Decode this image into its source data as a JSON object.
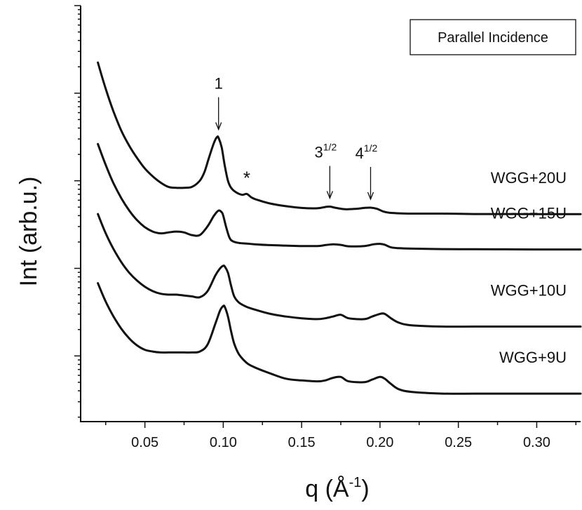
{
  "chart_data": {
    "type": "line",
    "title": "",
    "xlabel": "q (Å",
    "xlabel_superscript": "-1",
    "xlabel_close": ")",
    "ylabel": "Int (arb.u.)",
    "xlim": [
      0.009,
      0.328
    ],
    "y_scale": "log (arbitrary units, offset curves)",
    "grid": false,
    "x_ticks": [
      0.05,
      0.1,
      0.15,
      0.2,
      0.25,
      0.3
    ],
    "x_tick_labels": [
      "0.05",
      "0.10",
      "0.15",
      "0.20",
      "0.25",
      "0.30"
    ],
    "legend_box": {
      "text": "Parallel Incidence",
      "placement": "top-right"
    },
    "annotations": [
      {
        "label": "1",
        "superscript": "",
        "q": 0.097,
        "target_series": "WGG+20U"
      },
      {
        "label": "*",
        "superscript": "",
        "q": 0.115,
        "target_series": "WGG+20U"
      },
      {
        "label": "3",
        "superscript": "1/2",
        "q": 0.168,
        "target_series": "WGG+20U"
      },
      {
        "label": "4",
        "superscript": "1/2",
        "q": 0.194,
        "target_series": "WGG+20U"
      }
    ],
    "series": [
      {
        "name": "WGG+20U",
        "x": [
          0.02,
          0.025,
          0.03,
          0.035,
          0.04,
          0.045,
          0.05,
          0.055,
          0.06,
          0.065,
          0.07,
          0.075,
          0.08,
          0.085,
          0.088,
          0.091,
          0.094,
          0.096,
          0.097,
          0.099,
          0.101,
          0.103,
          0.105,
          0.108,
          0.112,
          0.115,
          0.118,
          0.122,
          0.13,
          0.14,
          0.15,
          0.16,
          0.165,
          0.168,
          0.172,
          0.178,
          0.185,
          0.19,
          0.194,
          0.198,
          0.202,
          0.206,
          0.212,
          0.22,
          0.24,
          0.26,
          0.28,
          0.3,
          0.328
        ],
        "y": [
          2.35,
          2.05,
          1.79,
          1.57,
          1.4,
          1.26,
          1.14,
          1.05,
          0.98,
          0.93,
          0.92,
          0.92,
          0.93,
          1.0,
          1.1,
          1.27,
          1.43,
          1.5,
          1.49,
          1.38,
          1.17,
          1.0,
          0.92,
          0.87,
          0.84,
          0.85,
          0.81,
          0.78,
          0.74,
          0.71,
          0.69,
          0.686,
          0.7,
          0.705,
          0.69,
          0.675,
          0.68,
          0.69,
          0.693,
          0.68,
          0.65,
          0.635,
          0.628,
          0.625,
          0.625,
          0.62,
          0.62,
          0.619,
          0.619
        ]
      },
      {
        "name": "WGG+15U",
        "x": [
          0.02,
          0.025,
          0.03,
          0.035,
          0.04,
          0.045,
          0.05,
          0.055,
          0.06,
          0.065,
          0.07,
          0.075,
          0.08,
          0.085,
          0.09,
          0.094,
          0.097,
          0.099,
          0.1,
          0.102,
          0.104,
          0.106,
          0.11,
          0.115,
          0.12,
          0.13,
          0.14,
          0.15,
          0.16,
          0.165,
          0.17,
          0.175,
          0.18,
          0.19,
          0.196,
          0.2,
          0.203,
          0.207,
          0.212,
          0.22,
          0.24,
          0.26,
          0.28,
          0.3,
          0.328
        ],
        "y": [
          1.42,
          1.18,
          0.97,
          0.8,
          0.66,
          0.55,
          0.47,
          0.42,
          0.4,
          0.41,
          0.42,
          0.41,
          0.38,
          0.38,
          0.48,
          0.6,
          0.66,
          0.64,
          0.6,
          0.46,
          0.35,
          0.31,
          0.29,
          0.283,
          0.275,
          0.265,
          0.26,
          0.255,
          0.255,
          0.265,
          0.275,
          0.268,
          0.252,
          0.255,
          0.275,
          0.28,
          0.27,
          0.24,
          0.23,
          0.225,
          0.22,
          0.218,
          0.217,
          0.216,
          0.216
        ]
      },
      {
        "name": "WGG+10U",
        "x": [
          0.02,
          0.025,
          0.03,
          0.035,
          0.04,
          0.045,
          0.05,
          0.055,
          0.06,
          0.065,
          0.07,
          0.075,
          0.08,
          0.085,
          0.09,
          0.095,
          0.098,
          0.1,
          0.101,
          0.103,
          0.105,
          0.107,
          0.11,
          0.115,
          0.12,
          0.13,
          0.14,
          0.15,
          0.16,
          0.165,
          0.17,
          0.175,
          0.18,
          0.19,
          0.195,
          0.2,
          0.203,
          0.207,
          0.212,
          0.22,
          0.24,
          0.26,
          0.28,
          0.3,
          0.328
        ],
        "y": [
          0.62,
          0.4,
          0.22,
          0.07,
          -0.05,
          -0.14,
          -0.21,
          -0.26,
          -0.29,
          -0.3,
          -0.3,
          -0.31,
          -0.32,
          -0.33,
          -0.26,
          -0.08,
          0.0,
          0.03,
          0.02,
          -0.05,
          -0.2,
          -0.32,
          -0.39,
          -0.44,
          -0.47,
          -0.52,
          -0.55,
          -0.57,
          -0.58,
          -0.57,
          -0.55,
          -0.53,
          -0.57,
          -0.58,
          -0.55,
          -0.52,
          -0.52,
          -0.57,
          -0.62,
          -0.65,
          -0.665,
          -0.665,
          -0.665,
          -0.665,
          -0.665
        ]
      },
      {
        "name": "WGG+9U",
        "x": [
          0.02,
          0.025,
          0.03,
          0.035,
          0.04,
          0.045,
          0.05,
          0.055,
          0.06,
          0.065,
          0.07,
          0.075,
          0.08,
          0.085,
          0.09,
          0.095,
          0.098,
          0.1,
          0.101,
          0.103,
          0.105,
          0.107,
          0.11,
          0.115,
          0.12,
          0.13,
          0.14,
          0.15,
          0.16,
          0.165,
          0.17,
          0.175,
          0.18,
          0.19,
          0.195,
          0.2,
          0.203,
          0.207,
          0.212,
          0.22,
          0.24,
          0.26,
          0.28,
          0.3,
          0.328
        ],
        "y": [
          -0.17,
          -0.38,
          -0.55,
          -0.69,
          -0.8,
          -0.88,
          -0.93,
          -0.95,
          -0.96,
          -0.96,
          -0.96,
          -0.96,
          -0.96,
          -0.95,
          -0.87,
          -0.63,
          -0.48,
          -0.43,
          -0.44,
          -0.55,
          -0.72,
          -0.86,
          -0.98,
          -1.08,
          -1.13,
          -1.2,
          -1.26,
          -1.28,
          -1.29,
          -1.28,
          -1.25,
          -1.24,
          -1.29,
          -1.3,
          -1.27,
          -1.24,
          -1.26,
          -1.32,
          -1.38,
          -1.41,
          -1.43,
          -1.43,
          -1.43,
          -1.43,
          -1.43
        ]
      }
    ]
  }
}
